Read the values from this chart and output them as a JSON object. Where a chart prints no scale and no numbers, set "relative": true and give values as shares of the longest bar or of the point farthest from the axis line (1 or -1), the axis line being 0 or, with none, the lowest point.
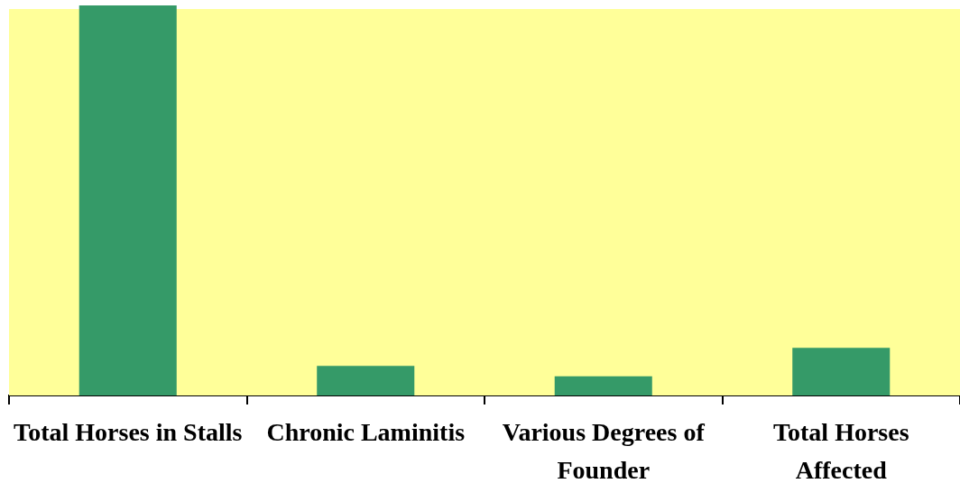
{
  "chart_data": {
    "type": "bar",
    "relative": true,
    "categories": [
      "Total Horses in Stalls",
      "Chronic Laminitis",
      "Various Degrees of Founder",
      "Total Horses Affected"
    ],
    "values": [
      1,
      0.076,
      0.049,
      0.122
    ],
    "color": "#359a68",
    "grid": false,
    "legend": false
  }
}
